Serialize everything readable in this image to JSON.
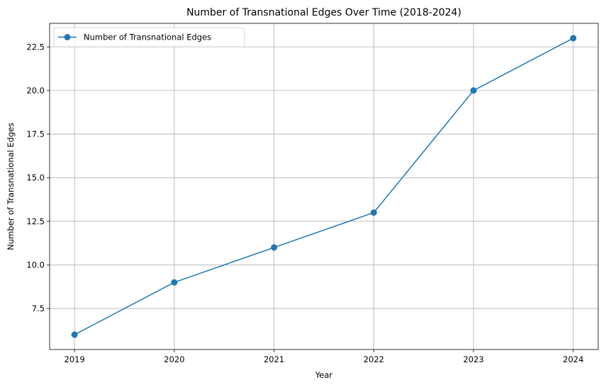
{
  "chart_data": {
    "type": "line",
    "title": "Number of Transnational Edges Over Time (2018-2024)",
    "xlabel": "Year",
    "ylabel": "Number of Transnational Edges",
    "x": [
      2019,
      2020,
      2021,
      2022,
      2023,
      2024
    ],
    "x_ticks": [
      "2019",
      "2020",
      "2021",
      "2022",
      "2023",
      "2024"
    ],
    "y_ticks": [
      "7.5",
      "10.0",
      "12.5",
      "15.0",
      "17.5",
      "20.0",
      "22.5"
    ],
    "y_tick_values": [
      7.5,
      10.0,
      12.5,
      15.0,
      17.5,
      20.0,
      22.5
    ],
    "xlim": [
      2018.75,
      2024.25
    ],
    "ylim": [
      5.15,
      23.85
    ],
    "grid": true,
    "legend_position": "top-left",
    "series": [
      {
        "name": "Number of Transnational Edges",
        "values": [
          6,
          9,
          11,
          13,
          20,
          23
        ],
        "color": "#1f77b4",
        "marker": "circle"
      }
    ]
  }
}
